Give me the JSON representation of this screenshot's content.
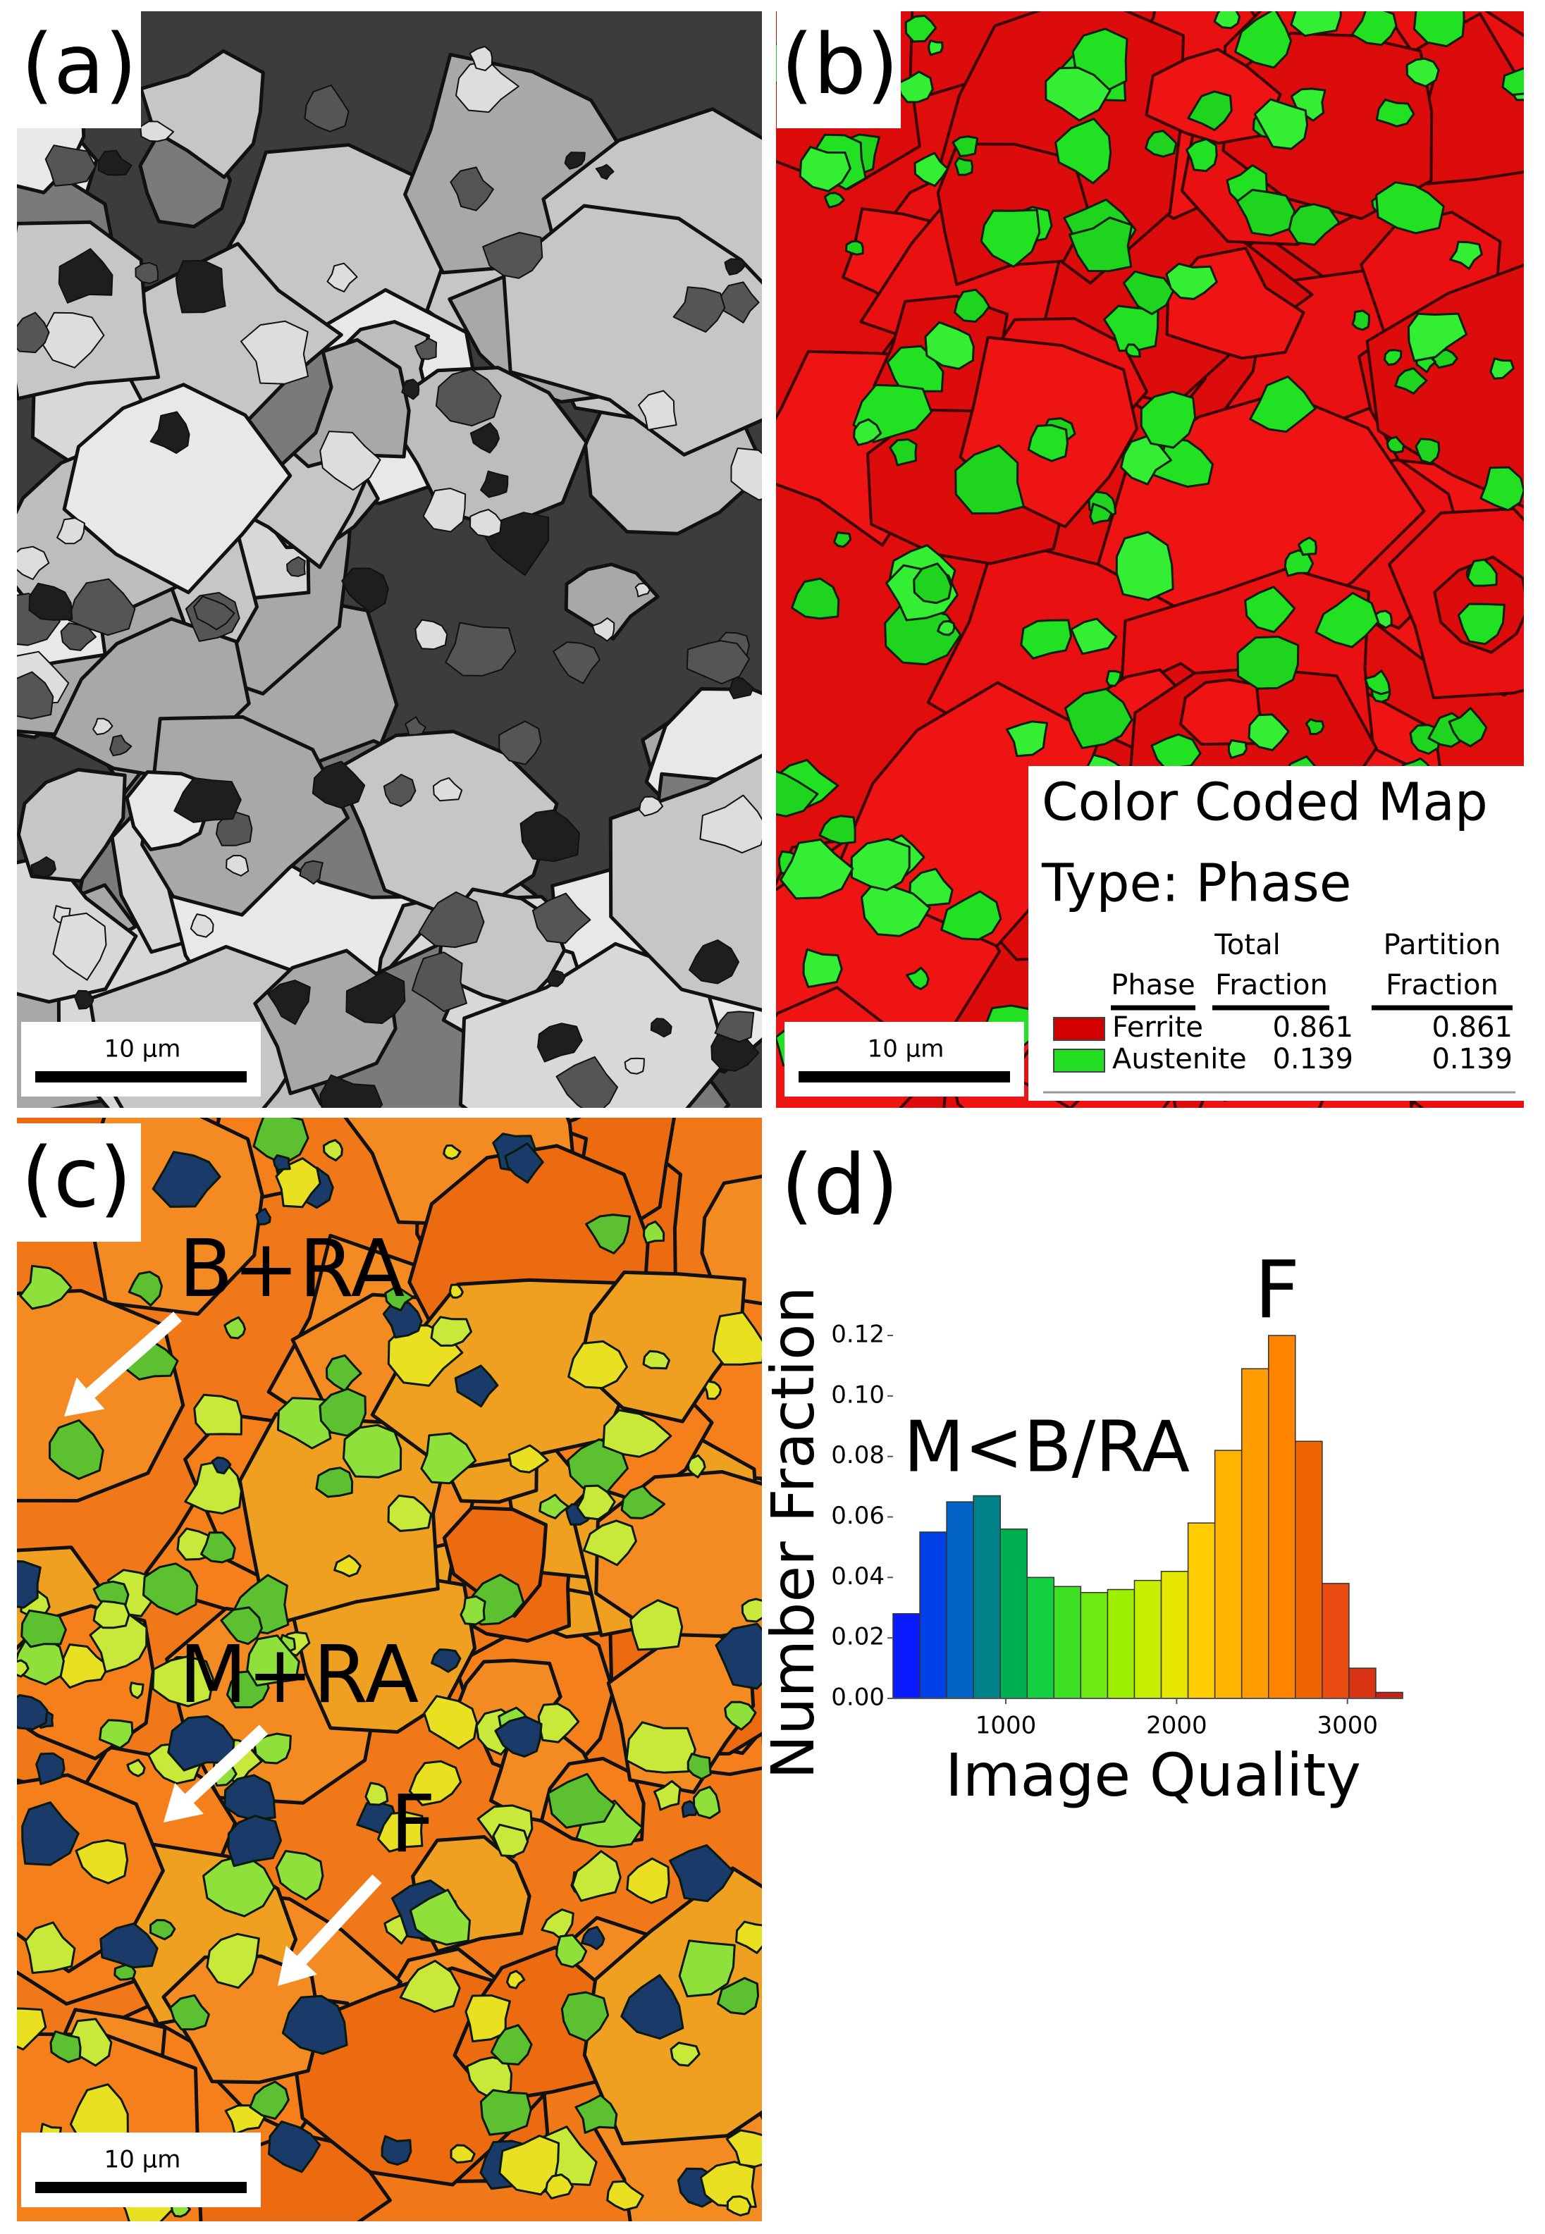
{
  "panels": {
    "a": {
      "label": "(a)",
      "scale_bar": "10 μm"
    },
    "b": {
      "label": "(b)",
      "scale_bar": "10 μm",
      "legend": {
        "title": "Color Coded Map",
        "subtitle": "Type: Phase",
        "col_phase": "Phase",
        "col_total": [
          "Total",
          "Fraction"
        ],
        "col_partition": [
          "Partition",
          "Fraction"
        ],
        "rows": [
          {
            "phase": "Ferrite",
            "color": "#d40000",
            "total": 0.861,
            "partition": 0.861
          },
          {
            "phase": "Austenite",
            "color": "#22dd22",
            "total": 0.139,
            "partition": 0.139
          }
        ]
      }
    },
    "c": {
      "label": "(c)",
      "scale_bar": "10 μm",
      "annotations": [
        "B+RA",
        "M+RA",
        "F"
      ]
    },
    "d": {
      "label": "(d)"
    }
  },
  "chart_data": {
    "type": "histogram",
    "xlabel": "Image Quality",
    "ylabel": "Number Fraction",
    "bins": [
      340,
      497,
      654,
      811,
      968,
      1125,
      1282,
      1439,
      1596,
      1753,
      1910,
      2067,
      2224,
      2381,
      2538,
      2695,
      2852,
      3009,
      3166,
      3323
    ],
    "values": [
      0.028,
      0.055,
      0.065,
      0.067,
      0.056,
      0.04,
      0.037,
      0.035,
      0.036,
      0.039,
      0.042,
      0.058,
      0.082,
      0.109,
      0.12,
      0.085,
      0.038,
      0.01,
      0.002
    ],
    "colors": [
      "#0a1cff",
      "#0040e6",
      "#0062c4",
      "#00828a",
      "#00b050",
      "#12d040",
      "#3ee024",
      "#6cec12",
      "#9cf000",
      "#c6f000",
      "#e6e600",
      "#ffcc00",
      "#ffb400",
      "#ff9c00",
      "#ff8400",
      "#f06400",
      "#e84a10",
      "#d83414",
      "#c82014"
    ],
    "xlim": [
      340,
      3323
    ],
    "ylim": [
      0,
      0.12
    ],
    "xticks": [
      1000,
      2000,
      3000
    ],
    "yticks": [
      {
        "value": 0,
        "label": "0.00"
      },
      {
        "value": 0.02,
        "label": "0.02"
      },
      {
        "value": 0.04,
        "label": "0.04"
      },
      {
        "value": 0.06,
        "label": "0.06"
      },
      {
        "value": 0.08,
        "label": "0.08"
      },
      {
        "value": 0.1,
        "label": "0.10"
      },
      {
        "value": 0.12,
        "label": "0.12"
      }
    ],
    "annotations": [
      {
        "text": "F"
      },
      {
        "text": "M<B/RA"
      }
    ]
  }
}
